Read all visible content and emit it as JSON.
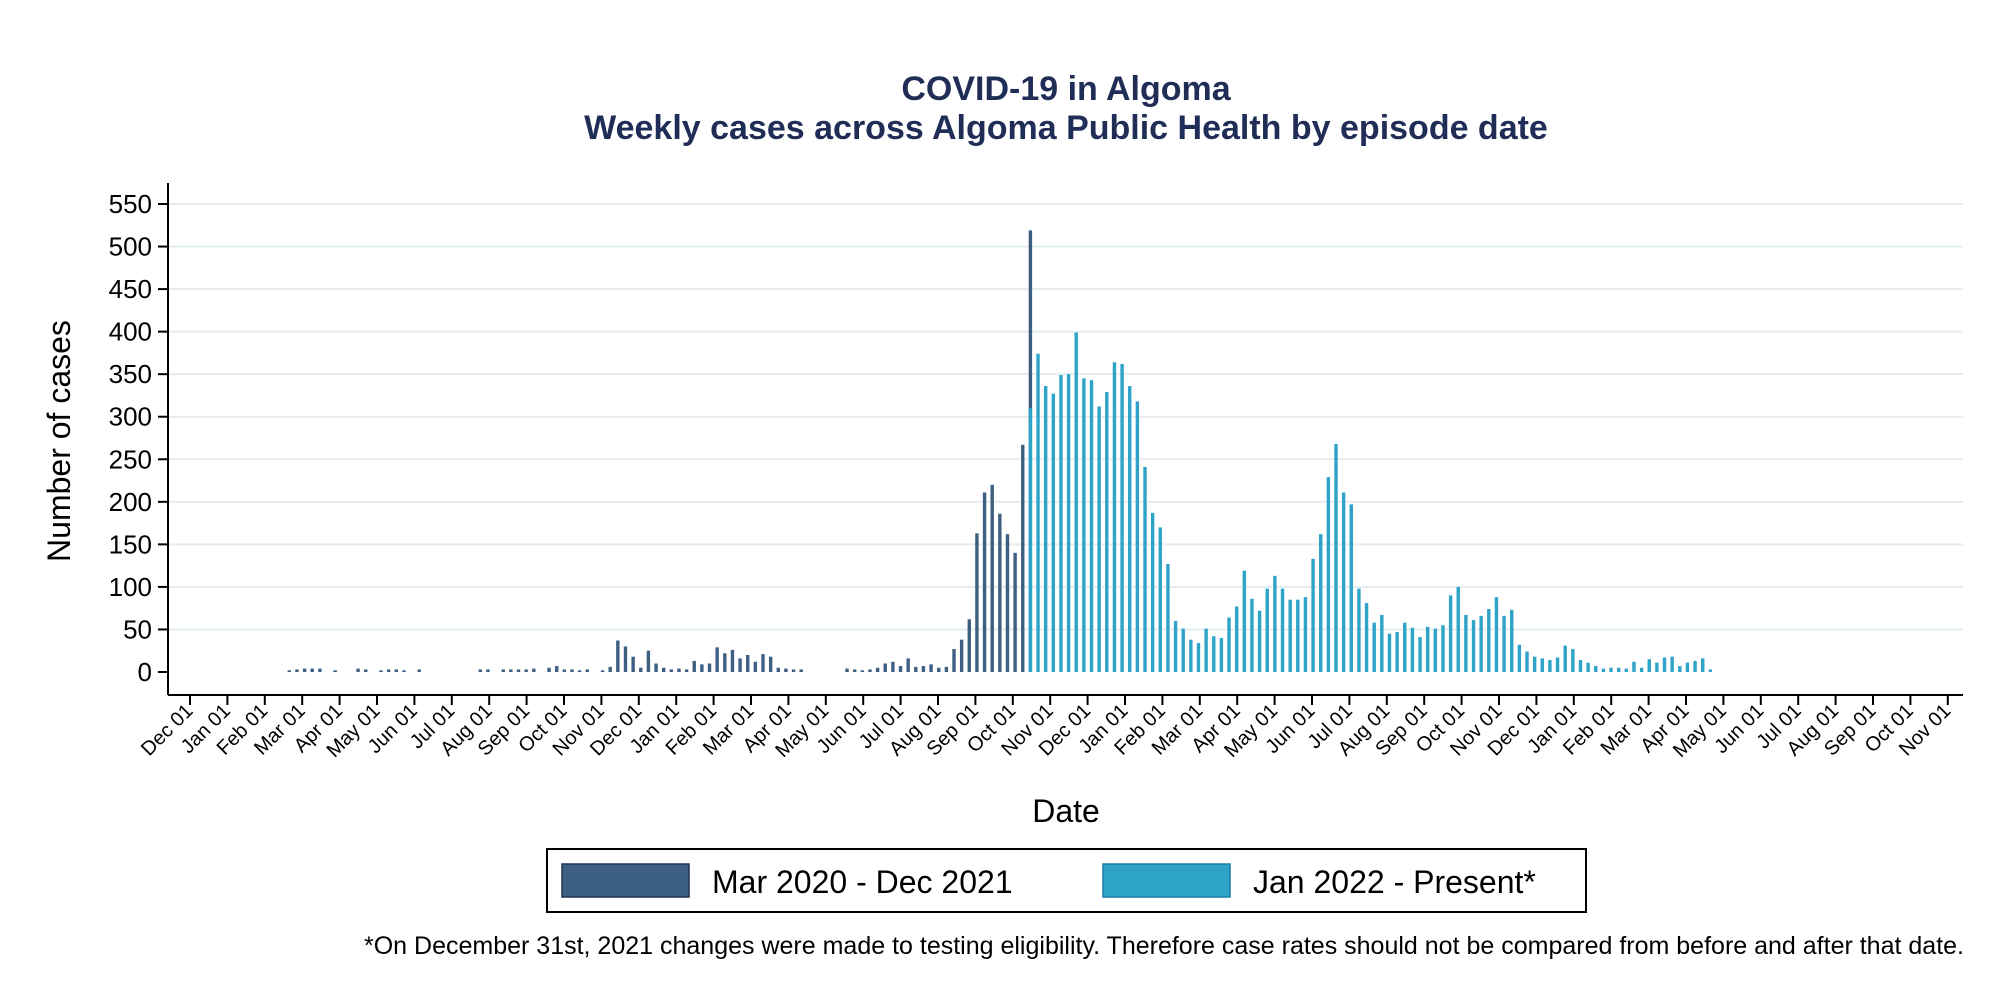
{
  "chart_data": {
    "type": "bar",
    "title": "COVID-19 in Algoma",
    "subtitle": "Weekly cases across Algoma Public Health by episode date",
    "xlabel": "Date",
    "ylabel": "Number of cases",
    "ylim": [
      0,
      550
    ],
    "yticks": [
      0,
      50,
      100,
      150,
      200,
      250,
      300,
      350,
      400,
      450,
      500,
      550
    ],
    "xticks": [
      "Dec 01",
      "Jan 01",
      "Feb 01",
      "Mar 01",
      "Apr 01",
      "May 01",
      "Jun 01",
      "Jul 01",
      "Aug 01",
      "Sep 01",
      "Oct 01",
      "Nov 01",
      "Dec 01",
      "Jan 01",
      "Feb 01",
      "Mar 01",
      "Apr 01",
      "May 01",
      "Jun 01",
      "Jul 01",
      "Aug 01",
      "Sep 01",
      "Oct 01",
      "Nov 01",
      "Dec 01",
      "Jan 01",
      "Feb 01",
      "Mar 01",
      "Apr 01",
      "May 01",
      "Jun 01",
      "Jul 01",
      "Aug 01",
      "Sep 01",
      "Oct 01",
      "Nov 01",
      "Dec 01",
      "Jan 01",
      "Feb 01",
      "Mar 01",
      "Apr 01",
      "May 01",
      "Jun 01",
      "Jul 01",
      "Aug 01",
      "Sep 01",
      "Oct 01",
      "Nov 01"
    ],
    "grid": true,
    "legend_position": "bottom",
    "colors": {
      "series1": "#3d5f82",
      "series2": "#2ea3c8",
      "grid": "#e3ecef",
      "title": "#1f2d57"
    },
    "series": [
      {
        "name": "Mar 2020 - Dec 2021",
        "start_week": 13,
        "values": [
          2,
          3,
          4,
          4,
          4,
          0,
          2,
          0,
          0,
          4,
          3,
          0,
          2,
          3,
          3,
          2,
          0,
          3,
          0,
          0,
          0,
          0,
          0,
          0,
          0,
          3,
          3,
          0,
          3,
          3,
          3,
          3,
          4,
          0,
          5,
          7,
          3,
          3,
          2,
          3,
          0,
          2,
          6,
          37,
          30,
          18,
          5,
          25,
          10,
          5,
          3,
          4,
          3,
          13,
          9,
          10,
          29,
          22,
          26,
          16,
          20,
          12,
          21,
          18,
          5,
          4,
          3,
          3,
          0,
          0,
          0,
          0,
          0,
          4,
          3,
          2,
          3,
          5,
          10,
          12,
          7,
          16,
          6,
          7,
          9,
          5,
          6,
          27,
          38,
          62,
          163,
          211,
          220,
          186,
          162,
          140,
          267,
          519
        ]
      },
      {
        "name": "Jan 2022 - Present*",
        "start_week": 110,
        "values": [
          310,
          374,
          336,
          327,
          349,
          350,
          399,
          345,
          343,
          312,
          329,
          364,
          362,
          336,
          318,
          241,
          187,
          170,
          127,
          60,
          51,
          38,
          34,
          51,
          42,
          40,
          64,
          77,
          119,
          86,
          72,
          98,
          113,
          98,
          85,
          85,
          88,
          133,
          162,
          229,
          268,
          211,
          197,
          98,
          81,
          58,
          67,
          45,
          47,
          58,
          52,
          41,
          53,
          51,
          55,
          90,
          100,
          67,
          61,
          66,
          74,
          88,
          66,
          73,
          32,
          24,
          18,
          16,
          14,
          17,
          31,
          27,
          14,
          11,
          7,
          4,
          5,
          5,
          4,
          12,
          5,
          15,
          11,
          17,
          18,
          7,
          11,
          13,
          16,
          3
        ]
      }
    ]
  },
  "legend": {
    "items": [
      {
        "label": "Mar 2020 - Dec 2021",
        "color": "#3d5f82"
      },
      {
        "label": "Jan 2022 - Present*",
        "color": "#2ea3c8"
      }
    ]
  },
  "footnote": "*On December 31st, 2021 changes were made to testing eligibility. Therefore case rates should not be compared from before and after that date."
}
